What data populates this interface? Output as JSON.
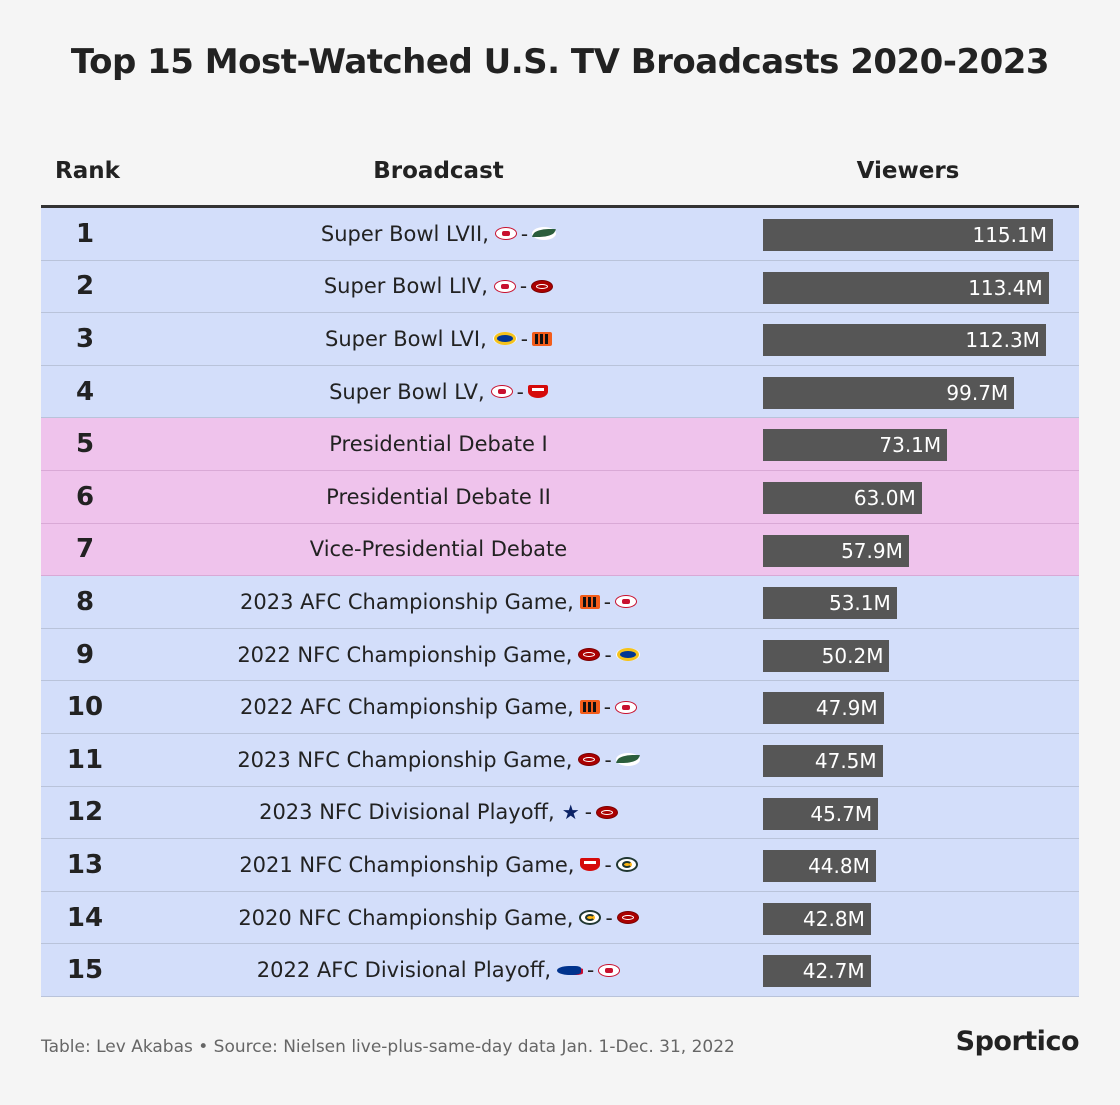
{
  "title": "Top 15 Most-Watched U.S. TV Broadcasts 2020-2023",
  "headers": {
    "rank": "Rank",
    "broadcast": "Broadcast",
    "viewers": "Viewers"
  },
  "footer": {
    "source": "Table: Lev Akabas • Source: Nielsen live-plus-same-day data Jan. 1-Dec. 31, 2022",
    "brand": "Sportico"
  },
  "colors": {
    "sport_row": "#d3defa",
    "politics_row": "#efc3ec",
    "bar": "#565656"
  },
  "chart_data": {
    "type": "bar",
    "title": "Top 15 Most-Watched U.S. TV Broadcasts 2020-2023",
    "xlabel": "",
    "ylabel": "Viewers",
    "xlim": [
      0,
      115.1
    ],
    "unit": "M",
    "rows": [
      {
        "rank": "1",
        "broadcast": "Super Bowl LVII,",
        "teams": [
          "kc",
          "phi"
        ],
        "value": 115.1,
        "label": "115.1M",
        "category": "sport"
      },
      {
        "rank": "2",
        "broadcast": "Super Bowl LIV,",
        "teams": [
          "kc",
          "sf"
        ],
        "value": 113.4,
        "label": "113.4M",
        "category": "sport"
      },
      {
        "rank": "3",
        "broadcast": "Super Bowl LVI,",
        "teams": [
          "lar",
          "cin"
        ],
        "value": 112.3,
        "label": "112.3M",
        "category": "sport"
      },
      {
        "rank": "4",
        "broadcast": "Super Bowl LV,",
        "teams": [
          "kc",
          "tb"
        ],
        "value": 99.7,
        "label": "99.7M",
        "category": "sport"
      },
      {
        "rank": "5",
        "broadcast": "Presidential Debate I",
        "teams": [],
        "value": 73.1,
        "label": "73.1M",
        "category": "politics"
      },
      {
        "rank": "6",
        "broadcast": "Presidential Debate II",
        "teams": [],
        "value": 63.0,
        "label": "63.0M",
        "category": "politics"
      },
      {
        "rank": "7",
        "broadcast": "Vice-Presidential Debate",
        "teams": [],
        "value": 57.9,
        "label": "57.9M",
        "category": "politics"
      },
      {
        "rank": "8",
        "broadcast": "2023 AFC Championship Game,",
        "teams": [
          "cin",
          "kc"
        ],
        "value": 53.1,
        "label": "53.1M",
        "category": "sport"
      },
      {
        "rank": "9",
        "broadcast": "2022 NFC Championship Game,",
        "teams": [
          "sf",
          "lar"
        ],
        "value": 50.2,
        "label": "50.2M",
        "category": "sport"
      },
      {
        "rank": "10",
        "broadcast": "2022 AFC Championship Game,",
        "teams": [
          "cin",
          "kc"
        ],
        "value": 47.9,
        "label": "47.9M",
        "category": "sport"
      },
      {
        "rank": "11",
        "broadcast": "2023 NFC Championship Game,",
        "teams": [
          "sf",
          "phi"
        ],
        "value": 47.5,
        "label": "47.5M",
        "category": "sport"
      },
      {
        "rank": "12",
        "broadcast": "2023 NFC Divisional Playoff,",
        "teams": [
          "dal",
          "sf"
        ],
        "value": 45.7,
        "label": "45.7M",
        "category": "sport"
      },
      {
        "rank": "13",
        "broadcast": "2021 NFC Championship Game,",
        "teams": [
          "tb",
          "gb"
        ],
        "value": 44.8,
        "label": "44.8M",
        "category": "sport"
      },
      {
        "rank": "14",
        "broadcast": "2020 NFC Championship Game,",
        "teams": [
          "gb",
          "sf"
        ],
        "value": 42.8,
        "label": "42.8M",
        "category": "sport"
      },
      {
        "rank": "15",
        "broadcast": "2022 AFC Divisional Playoff,",
        "teams": [
          "buf",
          "kc"
        ],
        "value": 42.7,
        "label": "42.7M",
        "category": "sport"
      }
    ]
  }
}
